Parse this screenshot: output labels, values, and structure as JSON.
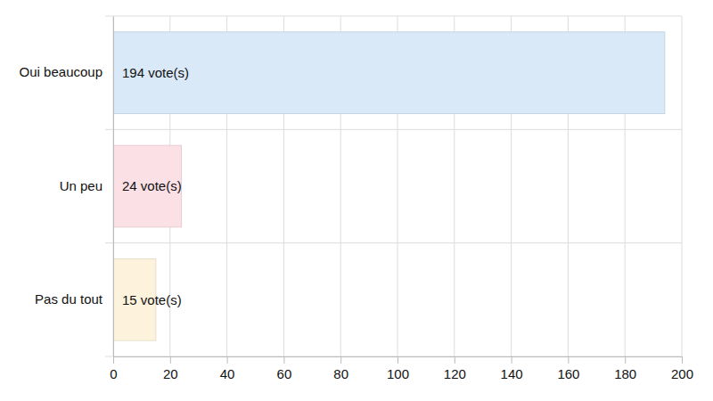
{
  "chart_data": {
    "type": "bar",
    "orientation": "horizontal",
    "categories": [
      "Oui beaucoup",
      "Un peu",
      "Pas du tout"
    ],
    "values": [
      194,
      24,
      15
    ],
    "value_labels": [
      "194 vote(s)",
      "24 vote(s)",
      "15 vote(s)"
    ],
    "colors": [
      "#d9e9f8",
      "#fbe0e6",
      "#fdf3dd"
    ],
    "xlim": [
      0,
      200
    ],
    "xticks": [
      0,
      20,
      40,
      60,
      80,
      100,
      120,
      140,
      160,
      180,
      200
    ],
    "grid": true,
    "data_labels": true
  }
}
